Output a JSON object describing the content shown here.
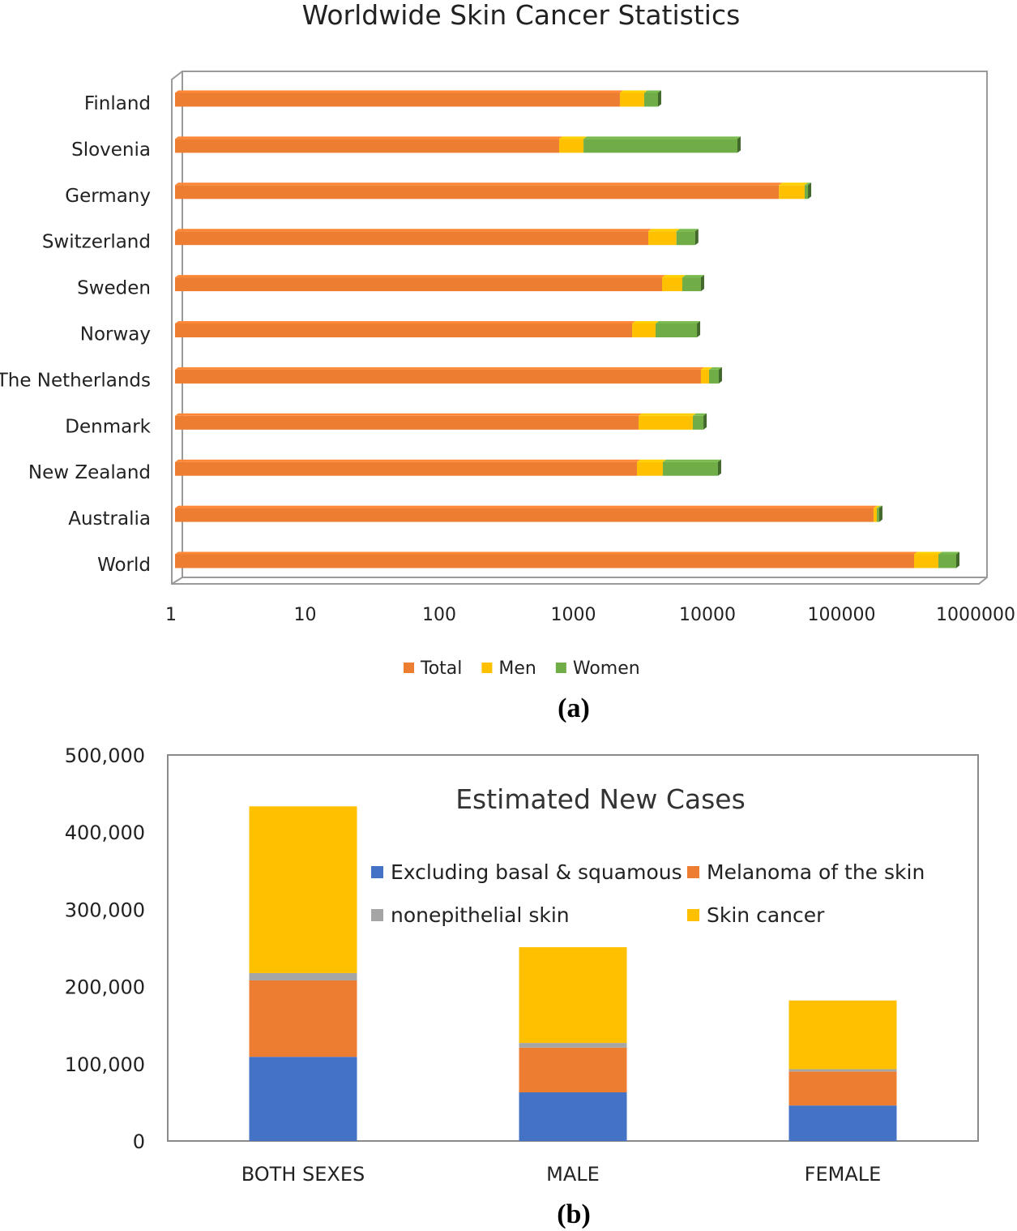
{
  "colors": {
    "Total": "#ED7D31",
    "Men": "#FFC000",
    "Women": "#70AD47",
    "Excluding basal & squamous": "#4472C4",
    "Melanoma of the skin": "#ED7D31",
    "nonepithelial skin": "#A5A5A5",
    "Skin cancer": "#FFC000"
  },
  "panel_labels": {
    "a": "(a)",
    "b": "(b)"
  },
  "chart_data": [
    {
      "type": "bar",
      "orientation": "horizontal",
      "stacked": true,
      "style": "3d",
      "title": "Worldwide Skin Cancer Statistics",
      "xscale": "log",
      "xlim": [
        1,
        1000000
      ],
      "xticks": [
        "1",
        "10",
        "100",
        "1000",
        "10000",
        "100000",
        "1000000"
      ],
      "legend_position": "bottom",
      "categories": [
        "Finland",
        "Slovenia",
        "Germany",
        "Switzerland",
        "Sweden",
        "Norway",
        "The Netherlands",
        "Denmark",
        "New Zealand",
        "Australia",
        "World"
      ],
      "series": [
        {
          "name": "Total",
          "values": [
            2075,
            731,
            31800,
            3380,
            4280,
            2560,
            8340,
            2860,
            2780,
            161500,
            324000
          ]
        },
        {
          "name": "Men",
          "values": [
            1075,
            380,
            17700,
            2100,
            1780,
            1270,
            1250,
            4400,
            1560,
            9500,
            168000
          ]
        },
        {
          "name": "Women",
          "values": [
            840,
            14500,
            2900,
            2070,
            2280,
            3960,
            1740,
            1450,
            6830,
            7000,
            176000
          ]
        }
      ]
    },
    {
      "type": "bar",
      "orientation": "vertical",
      "stacked": true,
      "title": "Estimated New Cases",
      "ylim": [
        0,
        500000
      ],
      "yticks": [
        "0",
        "100,000",
        "200,000",
        "300,000",
        "400,000",
        "500,000"
      ],
      "legend_position": "top-right (inside plot)",
      "categories": [
        "BOTH SEXES",
        "MALE",
        "FEMALE"
      ],
      "series": [
        {
          "name": "Excluding basal & squamous",
          "values": [
            109000,
            63000,
            46000
          ]
        },
        {
          "name": "Melanoma of the skin",
          "values": [
            99000,
            58000,
            44000
          ]
        },
        {
          "name": "nonepithelial skin",
          "values": [
            9500,
            6000,
            3000
          ]
        },
        {
          "name": "Skin cancer",
          "values": [
            216000,
            124000,
            89000
          ]
        }
      ]
    }
  ]
}
